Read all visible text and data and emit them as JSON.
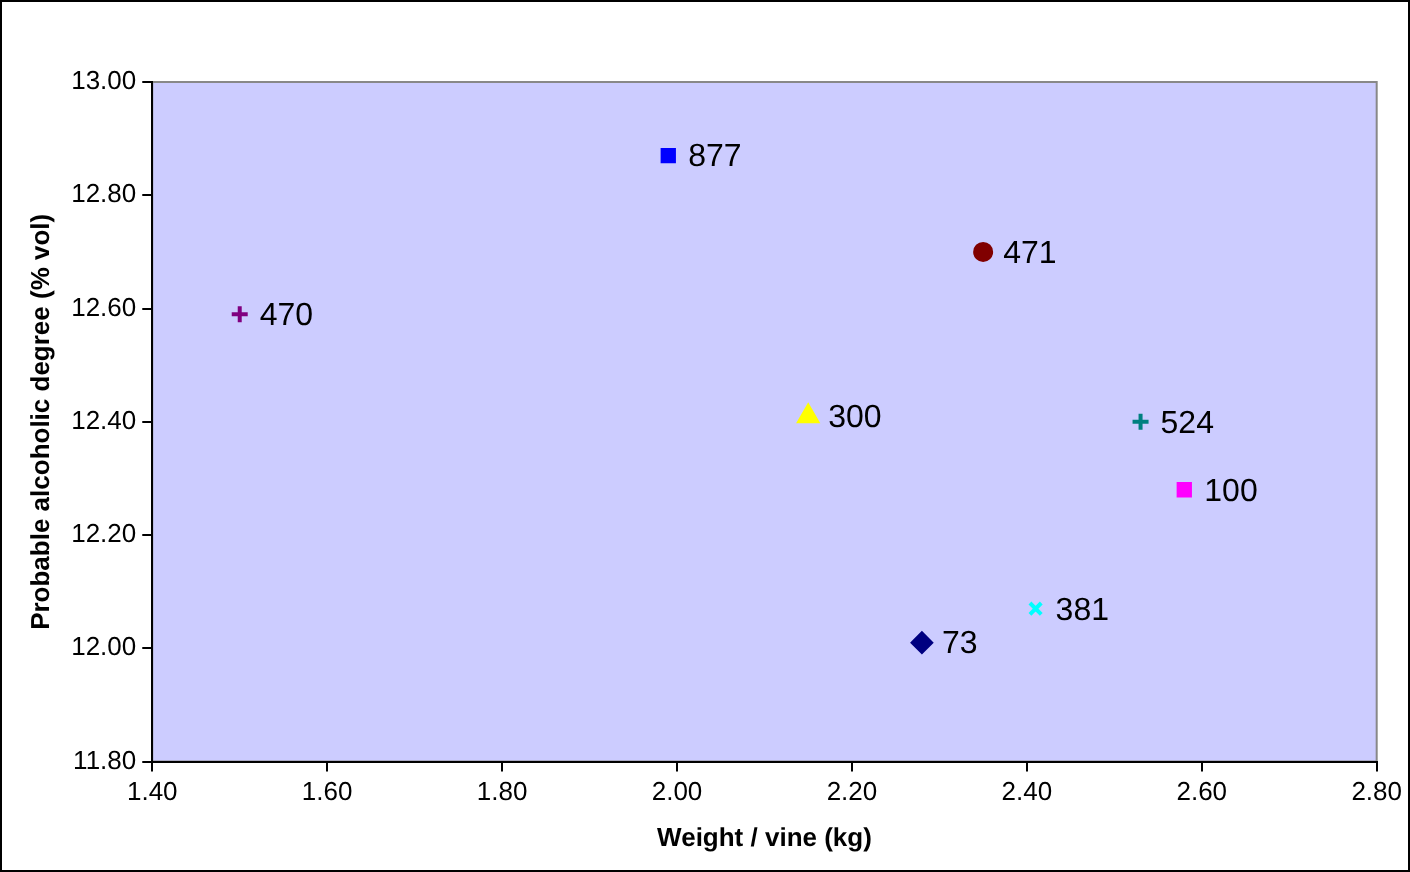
{
  "chart_data": {
    "type": "scatter",
    "xlabel": "Weight / vine (kg)",
    "ylabel": "Probable alcoholic degree (% vol)",
    "xlim": [
      1.4,
      2.8
    ],
    "xticks": [
      {
        "value": 1.4,
        "label": "1.40"
      },
      {
        "value": 1.6,
        "label": "1.60"
      },
      {
        "value": 1.8,
        "label": "1.80"
      },
      {
        "value": 2.0,
        "label": "2.00"
      },
      {
        "value": 2.2,
        "label": "2.20"
      },
      {
        "value": 2.4,
        "label": "2.40"
      },
      {
        "value": 2.6,
        "label": "2.60"
      },
      {
        "value": 2.8,
        "label": "2.80"
      }
    ],
    "ylim": [
      11.8,
      13.0
    ],
    "yticks": [
      {
        "value": 11.8,
        "label": "11.80"
      },
      {
        "value": 12.0,
        "label": "12.00"
      },
      {
        "value": 12.2,
        "label": "12.20"
      },
      {
        "value": 12.4,
        "label": "12.40"
      },
      {
        "value": 12.6,
        "label": "12.60"
      },
      {
        "value": 12.8,
        "label": "12.80"
      },
      {
        "value": 13.0,
        "label": "13.00"
      }
    ],
    "grid": false,
    "legend": false,
    "series": [
      {
        "name": "877",
        "color": "#0000ff",
        "marker": "square",
        "x": [
          1.99
        ],
        "values": [
          12.87
        ]
      },
      {
        "name": "470",
        "color": "#800080",
        "marker": "cross",
        "x": [
          1.5
        ],
        "values": [
          12.59
        ]
      },
      {
        "name": "471",
        "color": "#800000",
        "marker": "circle",
        "x": [
          2.35
        ],
        "values": [
          12.7
        ]
      },
      {
        "name": "300",
        "color": "#ffff00",
        "marker": "triangle",
        "x": [
          2.15
        ],
        "values": [
          12.41
        ]
      },
      {
        "name": "524",
        "color": "#008080",
        "marker": "cross",
        "x": [
          2.53
        ],
        "values": [
          12.4
        ]
      },
      {
        "name": "100",
        "color": "#ff00ff",
        "marker": "square",
        "x": [
          2.58
        ],
        "values": [
          12.28
        ]
      },
      {
        "name": "381",
        "color": "#00ffff",
        "marker": "x",
        "x": [
          2.41
        ],
        "values": [
          12.07
        ]
      },
      {
        "name": "73",
        "color": "#000080",
        "marker": "diamond",
        "x": [
          2.28
        ],
        "values": [
          12.01
        ]
      }
    ]
  }
}
